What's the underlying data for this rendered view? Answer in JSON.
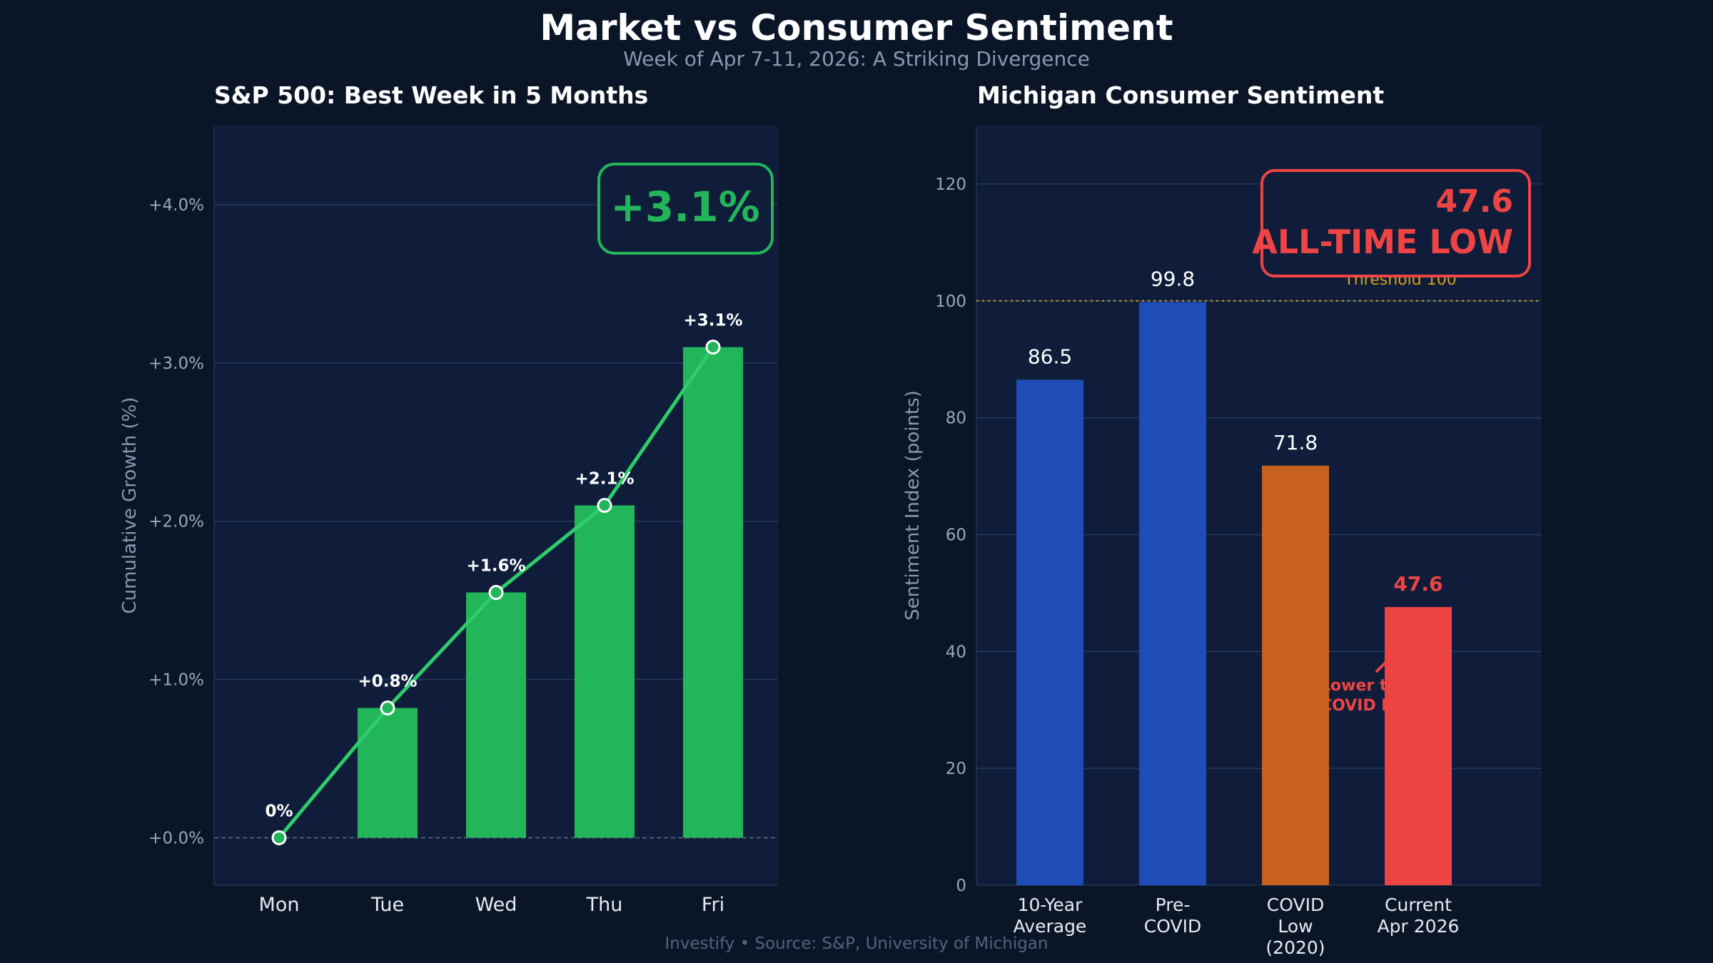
{
  "title": "Market vs Consumer Sentiment",
  "subtitle": "Week of Apr 7-11, 2026: A Striking Divergence",
  "footer": "Investify  •  Source: S&P, University of Michigan",
  "colors": {
    "background": "#0a1527",
    "axes": "#0f1d3a",
    "green": "#22b55a",
    "line": "#2ecc6a",
    "blue": "#1e4db7",
    "orange": "#c8601e",
    "red": "#ef4444",
    "threshold": "#d4a017"
  },
  "chart_data": [
    {
      "type": "bar",
      "title": "S&P 500: Best Week in 5 Months",
      "ylabel": "Cumulative Growth (%)",
      "categories": [
        "Mon",
        "Tue",
        "Wed",
        "Thu",
        "Fri"
      ],
      "values": [
        0,
        0.82,
        1.55,
        2.1,
        3.1
      ],
      "data_labels": [
        "0%",
        "+0.8%",
        "+1.6%",
        "+2.1%",
        "+3.1%"
      ],
      "overlay_line": true,
      "ylim": [
        -0.3,
        4.5
      ],
      "yticks": [
        0,
        1,
        2,
        3,
        4
      ],
      "ytick_labels": [
        "+0.0%",
        "+1.0%",
        "+2.0%",
        "+3.0%",
        "+4.0%"
      ],
      "grid": true,
      "callout": "+3.1%"
    },
    {
      "type": "bar",
      "title": "Michigan Consumer Sentiment",
      "ylabel": "Sentiment Index (points)",
      "categories": [
        [
          "10-Year",
          "Average"
        ],
        [
          "Pre-",
          "COVID"
        ],
        [
          "COVID",
          "Low",
          "(2020)"
        ],
        [
          "Current",
          "Apr 2026"
        ]
      ],
      "values": [
        86.5,
        99.8,
        71.8,
        47.6
      ],
      "data_labels": [
        "86.5",
        "99.8",
        "71.8",
        "47.6"
      ],
      "bar_colors": [
        "#1e4db7",
        "#1e4db7",
        "#c8601e",
        "#ef4444"
      ],
      "ylim": [
        0,
        130
      ],
      "yticks": [
        0,
        20,
        40,
        60,
        80,
        100,
        120
      ],
      "ytick_labels": [
        "0",
        "20",
        "40",
        "60",
        "80",
        "100",
        "120"
      ],
      "grid": true,
      "threshold": {
        "value": 100,
        "label": "Threshold 100"
      },
      "annotation": [
        "Lower than",
        "COVID low"
      ],
      "callout": [
        "47.6",
        "ALL-TIME LOW"
      ]
    }
  ]
}
